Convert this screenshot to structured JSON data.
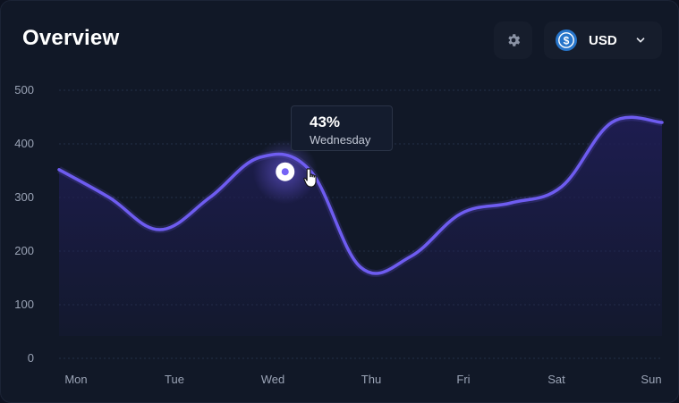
{
  "header": {
    "title": "Overview",
    "settings_icon": "gear-icon",
    "currency": {
      "label": "USD",
      "icon": "dollar-coin-icon",
      "dropdown_icon": "chevron-down-icon"
    }
  },
  "tooltip": {
    "value": "43%",
    "label": "Wednesday"
  },
  "colors": {
    "background": "#111827",
    "line": "#6e5cf0",
    "area": "#1e1d52",
    "accent": "#7563f5"
  },
  "chart_data": {
    "type": "area",
    "title": "",
    "xlabel": "",
    "ylabel": "",
    "categories": [
      "Mon",
      "Tue",
      "Wed",
      "Thu",
      "Fri",
      "Sat",
      "Sun"
    ],
    "y_ticks": [
      "0",
      "100",
      "200",
      "300",
      "400",
      "500"
    ],
    "ylim": [
      0,
      500
    ],
    "x": [
      0,
      0.5,
      1,
      1.5,
      2,
      2.5,
      3,
      3.5,
      4,
      4.5,
      5,
      5.5,
      6
    ],
    "series": [
      {
        "values": [
          352,
          300,
          240,
          300,
          375,
          350,
          170,
          190,
          270,
          290,
          320,
          440,
          440
        ]
      }
    ],
    "highlight": {
      "x": 2.25,
      "y": 348,
      "label": "Wednesday",
      "value": "43%"
    },
    "grid": true,
    "legend": "none"
  }
}
